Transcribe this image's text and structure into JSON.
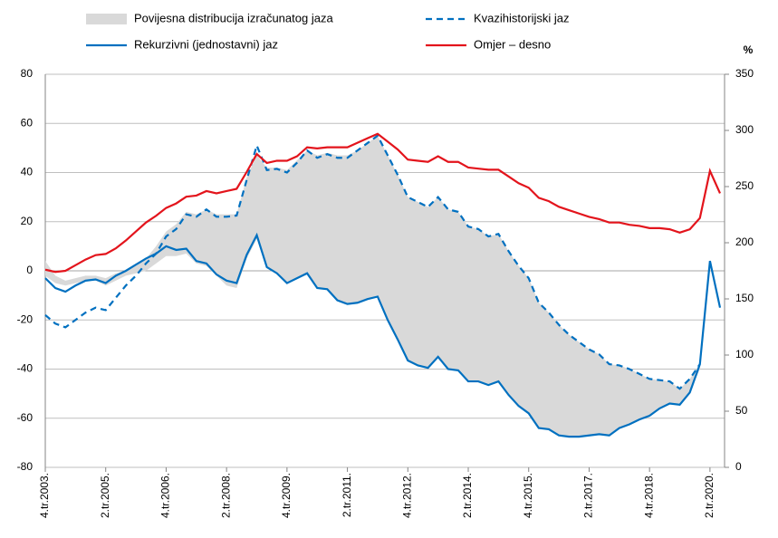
{
  "chart_data": {
    "type": "line",
    "categories": [
      "4.tr.2003.",
      null,
      null,
      null,
      null,
      null,
      "2.tr.2005.",
      null,
      null,
      null,
      null,
      null,
      "4.tr.2006.",
      null,
      null,
      null,
      null,
      null,
      "2.tr.2008.",
      null,
      null,
      null,
      null,
      null,
      "4.tr.2009.",
      null,
      null,
      null,
      null,
      null,
      "2.tr.2011.",
      null,
      null,
      null,
      null,
      null,
      "4.tr.2012.",
      null,
      null,
      null,
      null,
      null,
      "2.tr.2014.",
      null,
      null,
      null,
      null,
      null,
      "4.tr.2015.",
      null,
      null,
      null,
      null,
      null,
      "2.tr.2017.",
      null,
      null,
      null,
      null,
      null,
      "4.tr.2018.",
      null,
      null,
      null,
      null,
      null,
      "2.tr.2020.",
      null
    ],
    "ylim": [
      -80,
      80
    ],
    "yticks": [
      -80,
      -60,
      -40,
      -20,
      0,
      20,
      40,
      60,
      80
    ],
    "y2lim": [
      0,
      350
    ],
    "y2ticks": [
      0,
      50,
      100,
      150,
      200,
      250,
      300,
      350
    ],
    "y2_label": "%",
    "grid": true,
    "band": {
      "name": "Povijesna distribucija izračunatog jaza",
      "color": "#d9d9d9",
      "upper": [
        4,
        -2,
        -4,
        -3,
        -2,
        -2,
        -3,
        -1,
        0,
        2,
        5,
        10,
        16,
        19,
        24,
        23,
        25,
        23,
        23,
        23,
        38,
        47,
        42,
        42,
        41,
        45,
        49,
        47,
        48,
        47,
        47,
        49,
        52,
        55,
        47,
        39,
        30,
        28,
        26,
        30,
        25,
        24,
        18,
        17,
        14,
        15,
        8,
        2,
        -3,
        -13,
        -17,
        -22,
        -26,
        -29,
        -32,
        -34,
        -38,
        -38.5,
        -40,
        -42,
        -44,
        -44.5,
        -45,
        -48,
        -44,
        -38,
        null,
        null
      ],
      "lower": [
        -2,
        -5,
        -6,
        -5,
        -4,
        -4,
        -6,
        -4,
        -2,
        -1,
        0,
        3,
        6,
        6,
        7,
        3,
        2,
        -2,
        -6,
        -7,
        5,
        13,
        1,
        -1,
        -5,
        -3,
        -1,
        -7,
        -7.5,
        -12,
        -13.5,
        -13,
        -11.5,
        -10.5,
        -20,
        -28,
        -36.5,
        -38.5,
        -39.5,
        -35,
        -40,
        -40.5,
        -45,
        -45,
        -46.5,
        -45,
        -50.5,
        -55,
        -58,
        -64,
        -64.5,
        -67,
        -67.5,
        -67.5,
        -67,
        -66.5,
        -67,
        -64,
        -62.5,
        -60.5,
        -59,
        -56,
        -54,
        -54.5,
        -49.5,
        -40,
        null,
        null
      ]
    },
    "series": [
      {
        "name": "Kvazihistorijski jaz",
        "color": "#0070c0",
        "dashed": true,
        "values": [
          -18,
          -21.5,
          -23,
          -20,
          -17,
          -15,
          -16,
          -11,
          -6,
          -2,
          3,
          7,
          14,
          17,
          23,
          22,
          25,
          22,
          22,
          22.5,
          37,
          51,
          41,
          41.5,
          40,
          44,
          49,
          46,
          47.5,
          46,
          46,
          49,
          52,
          55,
          47,
          39,
          30,
          28,
          26,
          30,
          25,
          24,
          18,
          17,
          14,
          15,
          8,
          2,
          -3,
          -13,
          -17,
          -22,
          -26,
          -29,
          -32,
          -34,
          -38,
          -38.5,
          -40,
          -42,
          -44,
          -44.5,
          -45,
          -48,
          -44,
          -38,
          null,
          null
        ]
      },
      {
        "name": "Rekurzivni (jednostavni) jaz",
        "color": "#0070c0",
        "values": [
          -3,
          -7,
          -8.5,
          -6,
          -4,
          -3.5,
          -5,
          -2,
          0,
          2.5,
          5,
          7,
          10,
          8.5,
          9,
          4,
          3,
          -1.5,
          -4,
          -5,
          6.5,
          14.5,
          1.5,
          -1,
          -5,
          -3,
          -1,
          -7,
          -7.5,
          -12,
          -13.5,
          -13,
          -11.5,
          -10.5,
          -20,
          -28,
          -36.5,
          -38.5,
          -39.5,
          -35,
          -40,
          -40.5,
          -45,
          -45,
          -46.5,
          -45,
          -50.5,
          -55,
          -58,
          -64,
          -64.5,
          -67,
          -67.5,
          -67.5,
          -67,
          -66.5,
          -67,
          -64,
          -62.5,
          -60.5,
          -59,
          -56,
          -54,
          -54.5,
          -49.5,
          -38,
          4,
          -15
        ]
      },
      {
        "name": "Omjer – desno",
        "color": "#e3141c",
        "axis": "y2",
        "values": [
          176,
          174,
          175,
          180,
          185,
          189,
          190,
          195,
          202,
          210,
          218,
          224,
          231,
          235,
          241,
          242,
          246,
          244,
          246,
          248,
          263,
          279,
          271,
          273,
          273,
          277,
          285,
          284,
          285,
          285,
          285,
          289,
          293,
          297,
          290,
          283,
          274,
          273,
          272,
          277,
          272,
          272,
          267,
          266,
          265,
          265,
          259,
          253,
          249,
          240,
          237,
          232,
          229,
          226,
          223,
          221,
          218,
          218,
          216,
          215,
          213,
          213,
          212,
          209,
          212,
          222,
          264,
          244
        ]
      }
    ]
  }
}
